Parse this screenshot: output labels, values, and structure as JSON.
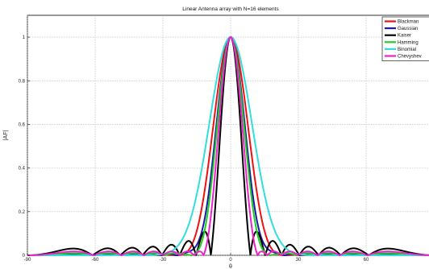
{
  "chart_data": {
    "type": "line",
    "title": "Linear Antenna array with N=16 elements",
    "xlabel": "θ",
    "ylabel": "|AF|",
    "xlim": [
      -90,
      90
    ],
    "ylim": [
      0,
      1.1
    ],
    "x_ticks": [
      -90,
      -60,
      -30,
      0,
      30,
      60
    ],
    "y_ticks": [
      0,
      0.2,
      0.4,
      0.6,
      0.8,
      1
    ],
    "grid": true,
    "legend_position": "top-right",
    "num_elements": 16,
    "series": [
      {
        "name": "Blackman",
        "color": "#ee1111",
        "window": "blackman"
      },
      {
        "name": "Gaussian",
        "color": "#1a1aa8",
        "window": "gaussian"
      },
      {
        "name": "Kaiser",
        "color": "#000000",
        "window": "kaiser"
      },
      {
        "name": "Hamming",
        "color": "#22cc22",
        "window": "hamming"
      },
      {
        "name": "Binomial",
        "color": "#33dddd",
        "window": "binomial"
      },
      {
        "name": "Chevyshev",
        "color": "#ee22cc",
        "window": "chebyshev"
      }
    ]
  }
}
